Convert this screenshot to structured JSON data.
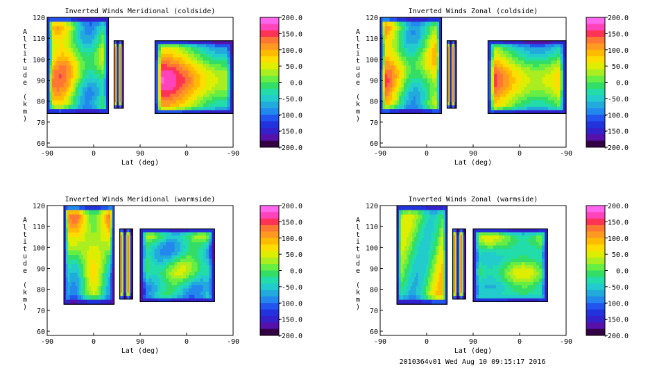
{
  "footer": "2010364v01 Wed Aug 10 09:15:17 2016",
  "colorbar": {
    "ticks": [
      "200.0",
      "150.0",
      "100.0",
      "50.0",
      "0.0",
      "-50.0",
      "-100.0",
      "-150.0",
      "-200.0"
    ],
    "colors": [
      "#ff66ee",
      "#ff44bb",
      "#ff3355",
      "#ff7733",
      "#ff9922",
      "#ffbb00",
      "#ffdd00",
      "#ddee00",
      "#aaee22",
      "#66ee44",
      "#33dd66",
      "#22ddaa",
      "#22cccc",
      "#22aadd",
      "#2288ee",
      "#2255ee",
      "#2233dd",
      "#3322cc",
      "#5511aa",
      "#330044"
    ]
  },
  "chart_data": [
    {
      "type": "heatmap",
      "title": "Inverted Winds Meridional (coldside)",
      "xlabel": "Lat (deg)",
      "ylabel": "Altitude (km)",
      "xticks": [
        "-90",
        "0",
        "90",
        "0",
        "-90"
      ],
      "yticks": [
        "60",
        "70",
        "80",
        "90",
        "100",
        "110",
        "120"
      ],
      "ylim": [
        58,
        120
      ],
      "colorbar_range": [
        -200,
        200
      ]
    },
    {
      "type": "heatmap",
      "title": "Inverted Winds Zonal (coldside)",
      "xlabel": "Lat (deg)",
      "ylabel": "Altitude (km)",
      "xticks": [
        "-90",
        "0",
        "90",
        "0",
        "-90"
      ],
      "yticks": [
        "60",
        "70",
        "80",
        "90",
        "100",
        "110",
        "120"
      ],
      "ylim": [
        58,
        120
      ],
      "colorbar_range": [
        -200,
        200
      ]
    },
    {
      "type": "heatmap",
      "title": "Inverted Winds Meridional (warmside)",
      "xlabel": "Lat (deg)",
      "ylabel": "Altitude (km)",
      "xticks": [
        "-90",
        "0",
        "90",
        "0",
        "-90"
      ],
      "yticks": [
        "60",
        "70",
        "80",
        "90",
        "100",
        "110",
        "120"
      ],
      "ylim": [
        58,
        120
      ],
      "colorbar_range": [
        -200,
        200
      ]
    },
    {
      "type": "heatmap",
      "title": "Inverted Winds Zonal (warmside)",
      "xlabel": "Lat (deg)",
      "ylabel": "Altitude (km)",
      "xticks": [
        "-90",
        "0",
        "90",
        "0",
        "-90"
      ],
      "yticks": [
        "60",
        "70",
        "80",
        "90",
        "100",
        "110",
        "120"
      ],
      "ylim": [
        58,
        120
      ],
      "colorbar_range": [
        -200,
        200
      ]
    }
  ]
}
